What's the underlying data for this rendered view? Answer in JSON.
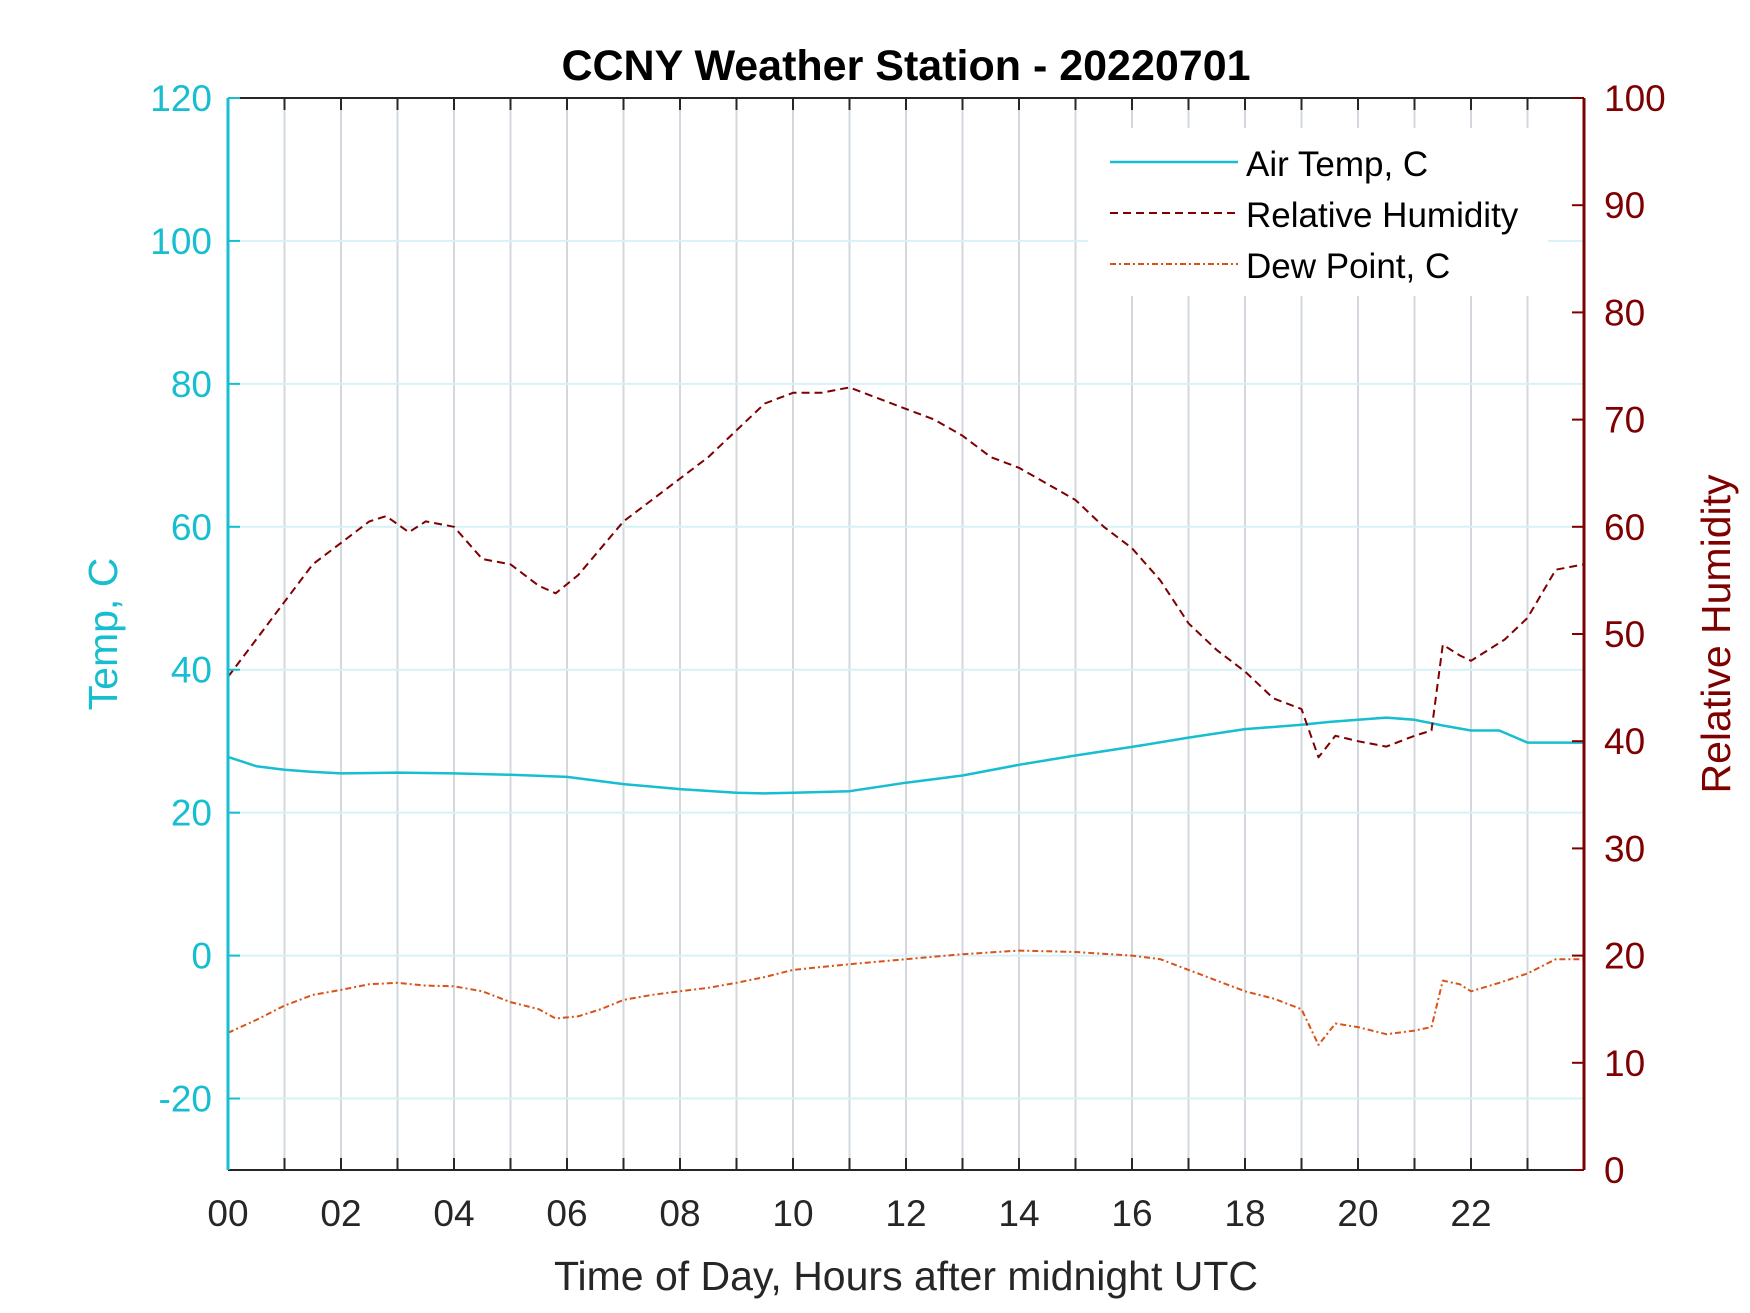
{
  "chart_data": {
    "type": "line",
    "title": "CCNY Weather Station - 20220701",
    "xlabel": "Time of Day, Hours after midnight UTC",
    "ylabel_left": "Temp, C",
    "ylabel_right": "Relative Humidity",
    "xlim": [
      0,
      24
    ],
    "ylim_left": [
      -30,
      120
    ],
    "ylim_right": [
      0,
      100
    ],
    "x_ticks": [
      0,
      2,
      4,
      6,
      8,
      10,
      12,
      14,
      16,
      18,
      20,
      22
    ],
    "x_tick_labels": [
      "00",
      "02",
      "04",
      "06",
      "08",
      "10",
      "12",
      "14",
      "16",
      "18",
      "20",
      "22"
    ],
    "y_left_ticks": [
      -20,
      0,
      20,
      40,
      60,
      80,
      100,
      120
    ],
    "y_left_tick_labels": [
      "-20",
      "0",
      "20",
      "40",
      "60",
      "80",
      "100",
      "120"
    ],
    "y_right_ticks": [
      0,
      10,
      20,
      30,
      40,
      50,
      60,
      70,
      80,
      90,
      100
    ],
    "y_right_tick_labels": [
      "0",
      "10",
      "20",
      "30",
      "40",
      "50",
      "60",
      "70",
      "80",
      "90",
      "100"
    ],
    "grid": true,
    "legend_position": "top-right",
    "colors": {
      "left_axis": "#17becf",
      "right_axis": "#7f0000",
      "air_temp": "#17becf",
      "relative_humidity": "#7f0000",
      "dew_point": "#d95319"
    },
    "series": [
      {
        "name": "Air Temp, C",
        "axis": "left",
        "style": "solid",
        "x": [
          0,
          0.5,
          1,
          1.5,
          2,
          3,
          4,
          5,
          6,
          7,
          8,
          9,
          9.5,
          10,
          11,
          12,
          13,
          14,
          15,
          16,
          17,
          18,
          19,
          19.5,
          20,
          20.5,
          21,
          21.5,
          22,
          22.5,
          23,
          24
        ],
        "values": [
          27.8,
          26.5,
          26.0,
          25.7,
          25.5,
          25.6,
          25.5,
          25.3,
          25.0,
          24.0,
          23.3,
          22.8,
          22.7,
          22.8,
          23.0,
          24.2,
          25.2,
          26.7,
          28.0,
          29.2,
          30.5,
          31.7,
          32.3,
          32.7,
          33.0,
          33.3,
          33.0,
          32.2,
          31.5,
          31.5,
          29.8,
          29.8
        ]
      },
      {
        "name": "Relative Humidity",
        "axis": "right",
        "style": "dashed",
        "x": [
          0,
          0.5,
          1,
          1.5,
          2,
          2.5,
          2.8,
          3.2,
          3.5,
          4,
          4.5,
          5,
          5.5,
          5.8,
          6.2,
          6.6,
          7,
          7.5,
          8,
          8.5,
          9,
          9.5,
          10,
          10.5,
          11,
          11.5,
          12,
          12.5,
          13,
          13.5,
          14,
          14.5,
          15,
          15.5,
          16,
          16.5,
          17,
          17.5,
          18,
          18.5,
          19,
          19.3,
          19.6,
          20,
          20.5,
          21,
          21.3,
          21.5,
          21.8,
          22,
          22.3,
          22.6,
          23,
          23.5,
          24
        ],
        "values": [
          46.0,
          49.5,
          53.0,
          56.5,
          58.5,
          60.5,
          61.0,
          59.5,
          60.5,
          60.0,
          57.0,
          56.5,
          54.5,
          53.8,
          55.5,
          58.0,
          60.5,
          62.5,
          64.5,
          66.5,
          69.0,
          71.5,
          72.5,
          72.5,
          73.0,
          72.0,
          71.0,
          70.0,
          68.5,
          66.5,
          65.5,
          64.0,
          62.5,
          60.0,
          58.0,
          55.0,
          51.0,
          48.5,
          46.5,
          44.0,
          43.0,
          38.5,
          40.5,
          40.0,
          39.5,
          40.5,
          41.0,
          49.0,
          48.0,
          47.5,
          48.5,
          49.5,
          51.5,
          56.0,
          56.5
        ]
      },
      {
        "name": "Dew Point, C",
        "axis": "left",
        "style": "dash-dot",
        "x": [
          0,
          0.5,
          1,
          1.5,
          2,
          2.5,
          3,
          3.5,
          4,
          4.5,
          5,
          5.5,
          5.8,
          6.2,
          6.6,
          7,
          7.5,
          8,
          8.5,
          9,
          9.5,
          10,
          11,
          12,
          13,
          14,
          15,
          16,
          16.5,
          17,
          17.5,
          18,
          18.5,
          19,
          19.3,
          19.6,
          20,
          20.5,
          21,
          21.3,
          21.5,
          21.8,
          22,
          22.5,
          23,
          23.5,
          24
        ],
        "values": [
          -10.8,
          -9.0,
          -7.0,
          -5.5,
          -4.8,
          -4.0,
          -3.8,
          -4.2,
          -4.3,
          -5.0,
          -6.5,
          -7.5,
          -8.8,
          -8.5,
          -7.5,
          -6.2,
          -5.5,
          -5.0,
          -4.5,
          -3.8,
          -3.0,
          -2.0,
          -1.2,
          -0.5,
          0.2,
          0.7,
          0.5,
          0.0,
          -0.5,
          -2.0,
          -3.5,
          -5.0,
          -6.0,
          -7.5,
          -12.5,
          -9.5,
          -10.0,
          -11.0,
          -10.5,
          -10.0,
          -3.5,
          -4.0,
          -5.0,
          -3.8,
          -2.5,
          -0.5,
          -0.5
        ]
      }
    ]
  }
}
